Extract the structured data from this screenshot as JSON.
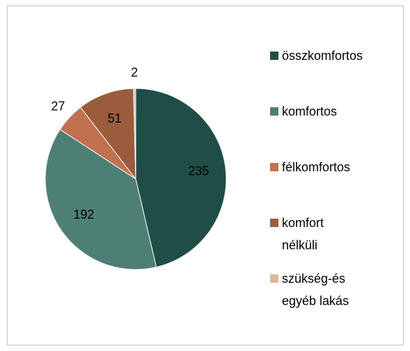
{
  "chart_data": {
    "type": "pie",
    "categories": [
      "összkomfortos",
      "komfortos",
      "félkomfortos",
      "komfort nélküli",
      "szükség-és egyéb lakás"
    ],
    "values": [
      235,
      192,
      27,
      51,
      2
    ],
    "colors": [
      "#1f4e46",
      "#4e7f75",
      "#c0714f",
      "#9a5c3d",
      "#d8b99b"
    ],
    "legend": "right"
  }
}
